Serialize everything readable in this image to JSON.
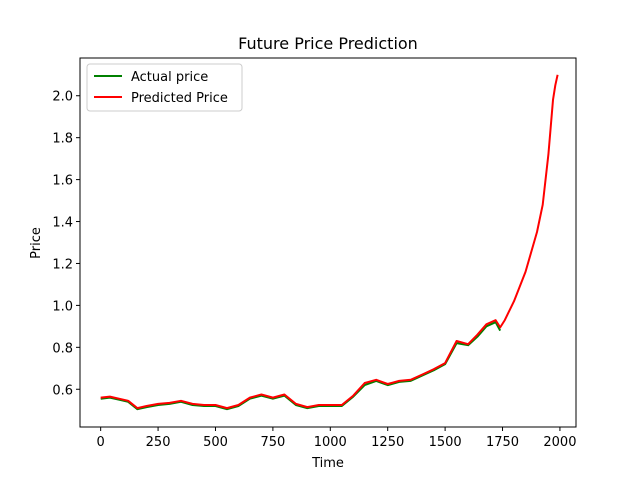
{
  "chart_data": {
    "type": "line",
    "title": "Future Price Prediction",
    "xlabel": "Time",
    "ylabel": "Price",
    "xlim": [
      -90,
      2070
    ],
    "ylim": [
      0.42,
      2.18
    ],
    "xticks": [
      0,
      250,
      500,
      750,
      1000,
      1250,
      1500,
      1750,
      2000
    ],
    "yticks": [
      0.6,
      0.8,
      1.0,
      1.2,
      1.4,
      1.6,
      1.8,
      2.0
    ],
    "legend": "top-left",
    "series": [
      {
        "name": "Actual price",
        "color": "#008000",
        "points": [
          [
            0,
            0.555
          ],
          [
            40,
            0.56
          ],
          [
            80,
            0.55
          ],
          [
            120,
            0.54
          ],
          [
            160,
            0.505
          ],
          [
            200,
            0.515
          ],
          [
            250,
            0.525
          ],
          [
            300,
            0.53
          ],
          [
            350,
            0.54
          ],
          [
            400,
            0.525
          ],
          [
            450,
            0.52
          ],
          [
            500,
            0.52
          ],
          [
            550,
            0.505
          ],
          [
            600,
            0.52
          ],
          [
            650,
            0.555
          ],
          [
            700,
            0.57
          ],
          [
            750,
            0.555
          ],
          [
            800,
            0.57
          ],
          [
            850,
            0.525
          ],
          [
            900,
            0.51
          ],
          [
            950,
            0.52
          ],
          [
            1000,
            0.52
          ],
          [
            1050,
            0.52
          ],
          [
            1100,
            0.565
          ],
          [
            1150,
            0.62
          ],
          [
            1200,
            0.64
          ],
          [
            1250,
            0.62
          ],
          [
            1300,
            0.635
          ],
          [
            1350,
            0.64
          ],
          [
            1400,
            0.665
          ],
          [
            1450,
            0.69
          ],
          [
            1500,
            0.72
          ],
          [
            1550,
            0.82
          ],
          [
            1600,
            0.81
          ],
          [
            1640,
            0.85
          ],
          [
            1680,
            0.9
          ],
          [
            1720,
            0.92
          ],
          [
            1740,
            0.88
          ]
        ]
      },
      {
        "name": "Predicted Price",
        "color": "#ff0000",
        "points": [
          [
            0,
            0.56
          ],
          [
            40,
            0.565
          ],
          [
            80,
            0.555
          ],
          [
            120,
            0.545
          ],
          [
            160,
            0.51
          ],
          [
            200,
            0.52
          ],
          [
            250,
            0.53
          ],
          [
            300,
            0.535
          ],
          [
            350,
            0.545
          ],
          [
            400,
            0.53
          ],
          [
            450,
            0.525
          ],
          [
            500,
            0.525
          ],
          [
            550,
            0.51
          ],
          [
            600,
            0.525
          ],
          [
            650,
            0.56
          ],
          [
            700,
            0.575
          ],
          [
            750,
            0.56
          ],
          [
            800,
            0.575
          ],
          [
            850,
            0.53
          ],
          [
            900,
            0.515
          ],
          [
            950,
            0.525
          ],
          [
            1000,
            0.525
          ],
          [
            1050,
            0.525
          ],
          [
            1100,
            0.57
          ],
          [
            1150,
            0.63
          ],
          [
            1200,
            0.645
          ],
          [
            1250,
            0.625
          ],
          [
            1300,
            0.64
          ],
          [
            1350,
            0.645
          ],
          [
            1400,
            0.67
          ],
          [
            1450,
            0.695
          ],
          [
            1500,
            0.725
          ],
          [
            1550,
            0.83
          ],
          [
            1600,
            0.815
          ],
          [
            1640,
            0.86
          ],
          [
            1680,
            0.91
          ],
          [
            1720,
            0.93
          ],
          [
            1740,
            0.895
          ],
          [
            1760,
            0.93
          ],
          [
            1800,
            1.02
          ],
          [
            1850,
            1.16
          ],
          [
            1900,
            1.35
          ],
          [
            1925,
            1.48
          ],
          [
            1950,
            1.72
          ],
          [
            1960,
            1.85
          ],
          [
            1970,
            1.98
          ],
          [
            1980,
            2.05
          ],
          [
            1990,
            2.1
          ]
        ]
      }
    ]
  }
}
